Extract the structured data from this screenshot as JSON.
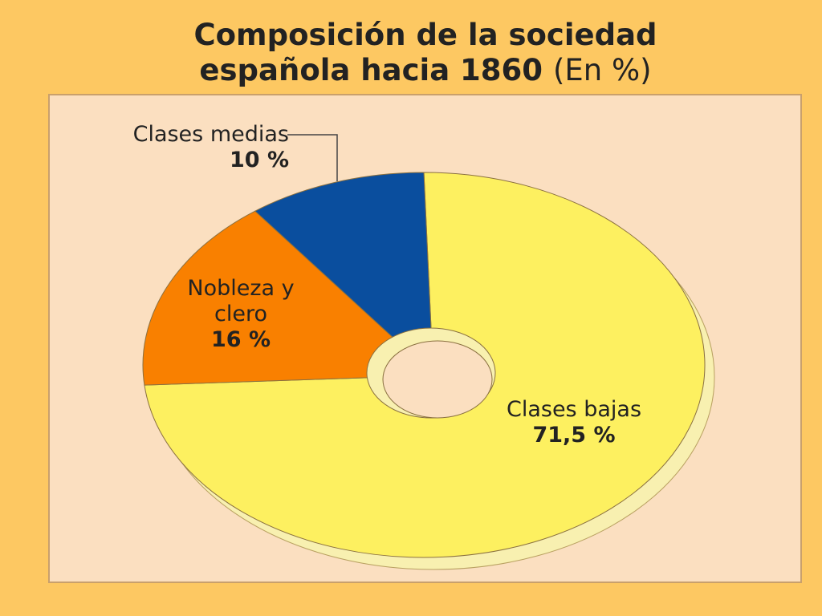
{
  "chart_data": {
    "type": "donut",
    "title": "Composición de la sociedad española hacia 1860",
    "subtitle": "(En %)",
    "categories": [
      "Clases bajas",
      "Nobleza y clero",
      "Clases medias"
    ],
    "values": [
      71.5,
      16,
      10
    ],
    "value_labels": [
      "71,5 %",
      "16 %",
      "10 %"
    ],
    "colors": [
      "#fdf060",
      "#f98000",
      "#0a4e9e"
    ]
  }
}
